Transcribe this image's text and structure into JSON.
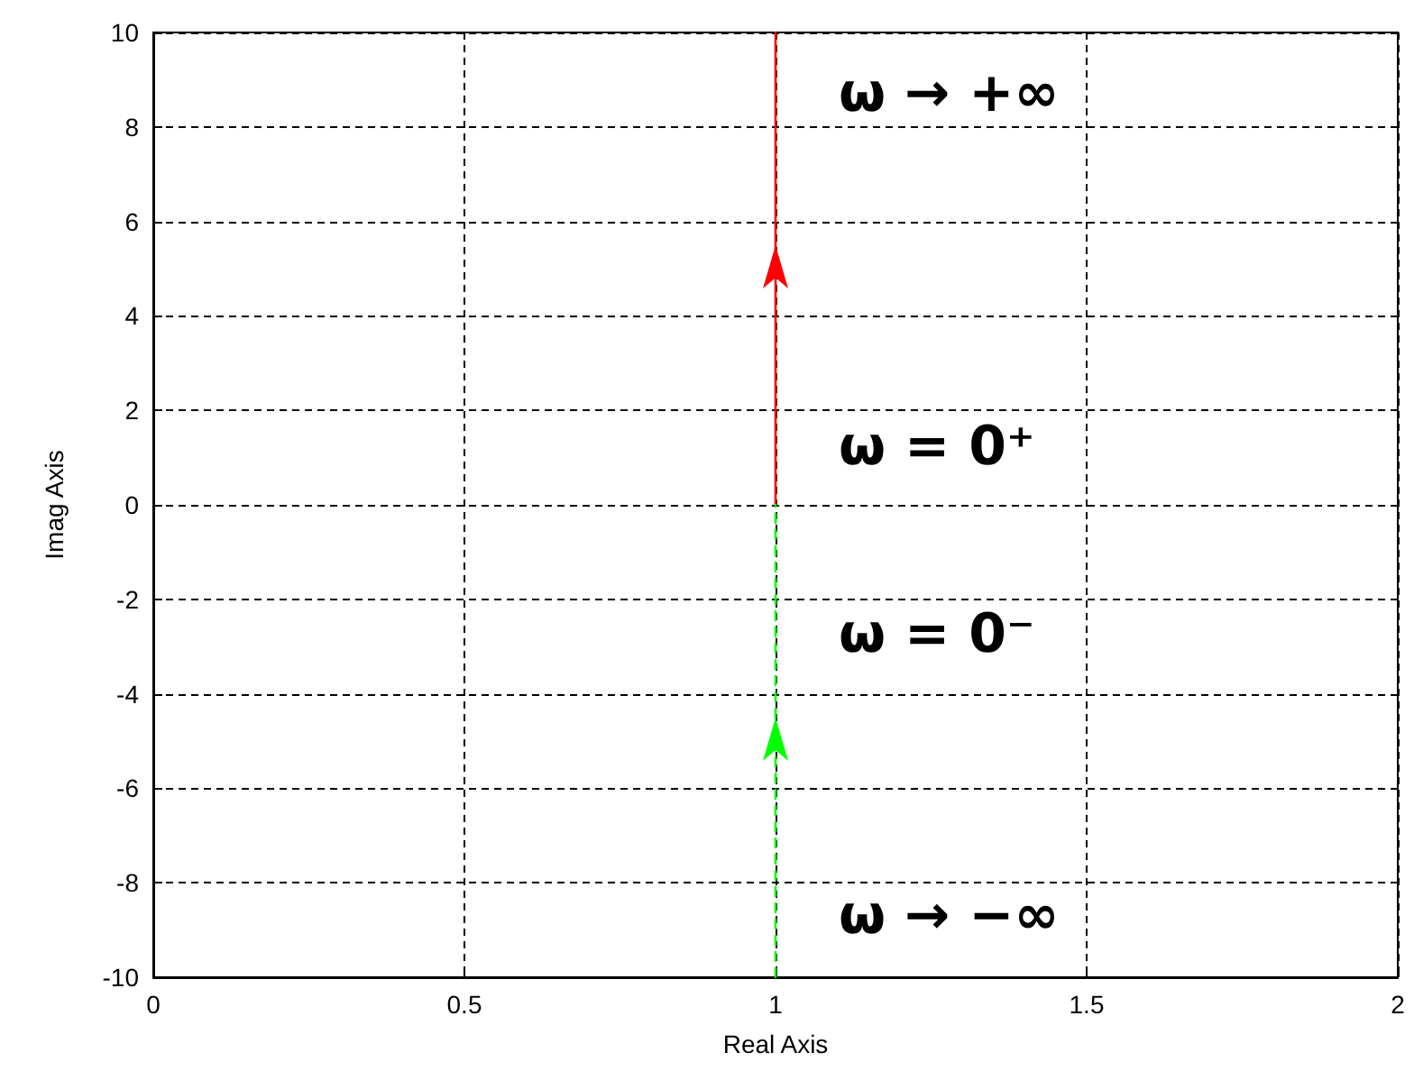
{
  "chart_data": {
    "type": "line",
    "xlabel": "Real Axis",
    "ylabel": "Imag Axis",
    "xlim": [
      0,
      2
    ],
    "xticks": [
      0,
      0.5,
      1,
      1.5,
      2
    ],
    "ylim": [
      -10,
      10
    ],
    "yticks": [
      -10,
      -8,
      -6,
      -4,
      -2,
      0,
      2,
      4,
      6,
      8,
      10
    ],
    "grid": true,
    "marker": "none",
    "x": [
      1,
      1
    ],
    "series": [
      {
        "color": "#ff0000",
        "values": [
          0,
          10
        ],
        "line_style": "solid"
      },
      {
        "color": "#00ff00",
        "values": [
          -10,
          0
        ],
        "line_style": "dashed"
      }
    ],
    "annotations": [
      "ω → +∞",
      "ω = 0⁺",
      "ω = 0⁻",
      "ω → −∞"
    ]
  }
}
